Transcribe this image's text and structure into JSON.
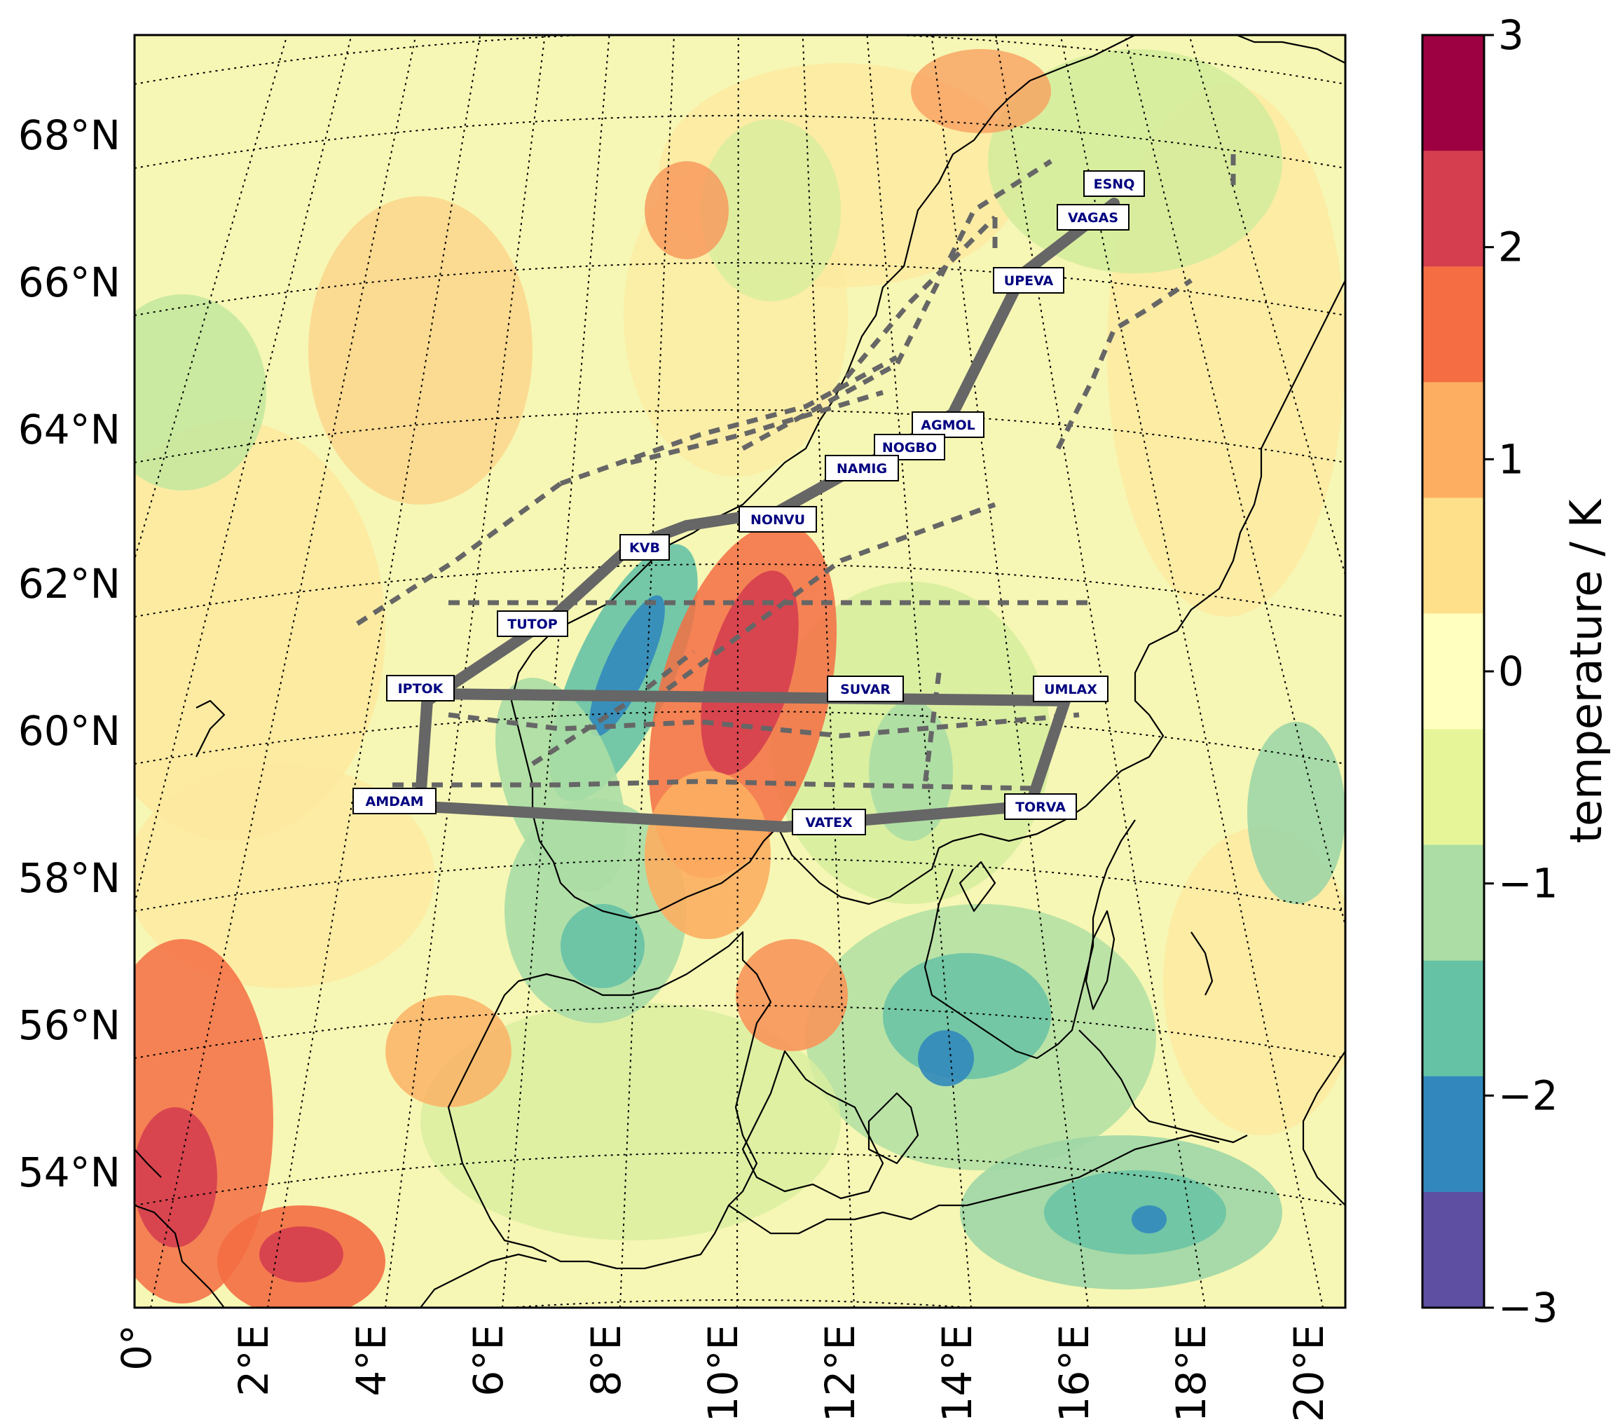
{
  "map": {
    "lat_labels": [
      "68°N",
      "66°N",
      "64°N",
      "62°N",
      "60°N",
      "58°N",
      "56°N",
      "54°N"
    ],
    "lon_labels": [
      "0°",
      "2°E",
      "4°E",
      "6°E",
      "8°E",
      "10°E",
      "12°E",
      "14°E",
      "16°E",
      "18°E",
      "20°E"
    ],
    "waypoints": [
      {
        "name": "ESNQ"
      },
      {
        "name": "VAGAS"
      },
      {
        "name": "UPEVA"
      },
      {
        "name": "AGMOL"
      },
      {
        "name": "NOGBO"
      },
      {
        "name": "NAMIG"
      },
      {
        "name": "NONVU"
      },
      {
        "name": "KVB"
      },
      {
        "name": "TUTOP"
      },
      {
        "name": "IPTOK"
      },
      {
        "name": "SUVAR"
      },
      {
        "name": "UMLAX"
      },
      {
        "name": "AMDAM"
      },
      {
        "name": "VATEX"
      },
      {
        "name": "TORVA"
      }
    ]
  },
  "colorbar": {
    "label": "temperature / K",
    "ticks": [
      "3",
      "2",
      "1",
      "0",
      "−1",
      "−2",
      "−3"
    ],
    "colors": [
      "#9e0142",
      "#d53e4f",
      "#f46d43",
      "#fdae61",
      "#fee08b",
      "#ffffbf",
      "#e6f598",
      "#abdda4",
      "#66c2a5",
      "#3288bd",
      "#5e4fa2"
    ],
    "range": [
      -3,
      3
    ]
  },
  "field_colors": {
    "background": "#f4f8b0",
    "coast": "#000000",
    "route": "#666666"
  }
}
